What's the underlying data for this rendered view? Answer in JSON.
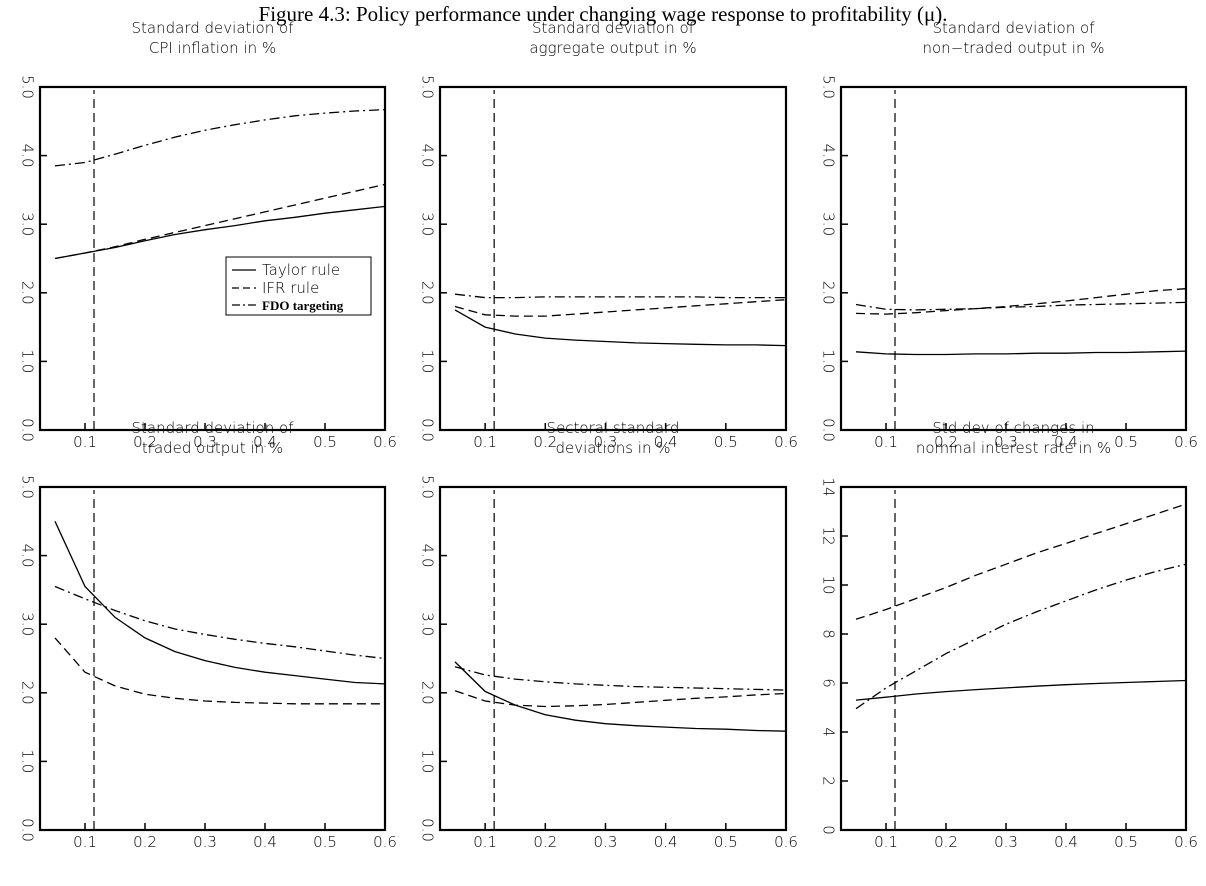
{
  "caption": "Figure 4.3: Policy performance under changing wage response to profitability (μ).",
  "chart_data": [
    {
      "type": "line",
      "title": [
        "Standard deviation of",
        "CPI inflation in %"
      ],
      "xlim": [
        0.025,
        0.6
      ],
      "ylim": [
        0,
        5
      ],
      "xticks": [
        "0.1",
        "0.2",
        "0.3",
        "0.4",
        "0.5",
        "0.6"
      ],
      "yticks": [
        "0.0",
        "1.0",
        "2.0",
        "3.0",
        "4.0",
        "5.0"
      ],
      "reference_x": 0.115,
      "legend": "center-right",
      "x": [
        0.05,
        0.1,
        0.15,
        0.2,
        0.25,
        0.3,
        0.35,
        0.4,
        0.45,
        0.5,
        0.55,
        0.6
      ],
      "series": [
        {
          "name": "Taylor rule",
          "dash": "solid",
          "values": [
            2.5,
            2.58,
            2.66,
            2.76,
            2.85,
            2.92,
            2.98,
            3.05,
            3.1,
            3.16,
            3.21,
            3.26
          ]
        },
        {
          "name": "IFR rule",
          "dash": "dashed",
          "values": [
            2.5,
            2.58,
            2.67,
            2.78,
            2.88,
            2.98,
            3.08,
            3.18,
            3.28,
            3.38,
            3.48,
            3.58
          ]
        },
        {
          "name": "FDO targeting",
          "dash": "dashdot",
          "values": [
            3.85,
            3.9,
            4.02,
            4.15,
            4.27,
            4.37,
            4.45,
            4.52,
            4.58,
            4.62,
            4.65,
            4.67
          ]
        }
      ]
    },
    {
      "type": "line",
      "title": [
        "Standard deviation of",
        "aggregate output in %"
      ],
      "xlim": [
        0.025,
        0.6
      ],
      "ylim": [
        0,
        5
      ],
      "xticks": [
        "0.1",
        "0.2",
        "0.3",
        "0.4",
        "0.5",
        "0.6"
      ],
      "yticks": [
        "0.0",
        "1.0",
        "2.0",
        "3.0",
        "4.0",
        "5.0"
      ],
      "reference_x": 0.115,
      "x": [
        0.05,
        0.1,
        0.15,
        0.2,
        0.25,
        0.3,
        0.35,
        0.4,
        0.45,
        0.5,
        0.55,
        0.6
      ],
      "series": [
        {
          "dash": "solid",
          "values": [
            1.75,
            1.5,
            1.4,
            1.34,
            1.31,
            1.29,
            1.27,
            1.26,
            1.25,
            1.24,
            1.24,
            1.23
          ]
        },
        {
          "dash": "dashed",
          "values": [
            1.8,
            1.68,
            1.66,
            1.66,
            1.69,
            1.72,
            1.75,
            1.78,
            1.81,
            1.84,
            1.87,
            1.9
          ]
        },
        {
          "dash": "dashdot",
          "values": [
            1.98,
            1.93,
            1.93,
            1.94,
            1.94,
            1.94,
            1.94,
            1.94,
            1.94,
            1.93,
            1.93,
            1.93
          ]
        }
      ]
    },
    {
      "type": "line",
      "title": [
        "Standard deviation of",
        "non−traded output in %"
      ],
      "xlim": [
        0.025,
        0.6
      ],
      "ylim": [
        0,
        5
      ],
      "xticks": [
        "0.1",
        "0.2",
        "0.3",
        "0.4",
        "0.5",
        "0.6"
      ],
      "yticks": [
        "0.0",
        "1.0",
        "2.0",
        "3.0",
        "4.0",
        "5.0"
      ],
      "reference_x": 0.115,
      "x": [
        0.05,
        0.1,
        0.15,
        0.2,
        0.25,
        0.3,
        0.35,
        0.4,
        0.45,
        0.5,
        0.55,
        0.6
      ],
      "series": [
        {
          "dash": "solid",
          "values": [
            1.14,
            1.11,
            1.1,
            1.1,
            1.11,
            1.11,
            1.12,
            1.12,
            1.13,
            1.13,
            1.14,
            1.15
          ]
        },
        {
          "dash": "dashed",
          "values": [
            1.7,
            1.69,
            1.71,
            1.74,
            1.77,
            1.8,
            1.84,
            1.88,
            1.93,
            1.98,
            2.03,
            2.06
          ]
        },
        {
          "dash": "dashdot",
          "values": [
            1.83,
            1.76,
            1.75,
            1.76,
            1.77,
            1.79,
            1.8,
            1.82,
            1.83,
            1.84,
            1.85,
            1.86
          ]
        }
      ]
    },
    {
      "type": "line",
      "title": [
        "Standard deviation of",
        "traded output in %"
      ],
      "xlim": [
        0.025,
        0.6
      ],
      "ylim": [
        0,
        5
      ],
      "xticks": [
        "0.1",
        "0.2",
        "0.3",
        "0.4",
        "0.5",
        "0.6"
      ],
      "yticks": [
        "0.0",
        "1.0",
        "2.0",
        "3.0",
        "4.0",
        "5.0"
      ],
      "reference_x": 0.115,
      "x": [
        0.05,
        0.1,
        0.15,
        0.2,
        0.25,
        0.3,
        0.35,
        0.4,
        0.45,
        0.5,
        0.55,
        0.6
      ],
      "series": [
        {
          "dash": "solid",
          "values": [
            4.5,
            3.55,
            3.1,
            2.8,
            2.6,
            2.47,
            2.37,
            2.3,
            2.25,
            2.2,
            2.15,
            2.13
          ]
        },
        {
          "dash": "dashed",
          "values": [
            2.8,
            2.3,
            2.1,
            1.98,
            1.92,
            1.88,
            1.86,
            1.85,
            1.84,
            1.84,
            1.84,
            1.84
          ]
        },
        {
          "dash": "dashdot",
          "values": [
            3.55,
            3.37,
            3.2,
            3.05,
            2.93,
            2.85,
            2.78,
            2.72,
            2.67,
            2.61,
            2.55,
            2.5
          ]
        }
      ]
    },
    {
      "type": "line",
      "title": [
        "Sectoral standard",
        "deviations in %"
      ],
      "xlim": [
        0.025,
        0.6
      ],
      "ylim": [
        0,
        5
      ],
      "xticks": [
        "0.1",
        "0.2",
        "0.3",
        "0.4",
        "0.5",
        "0.6"
      ],
      "yticks": [
        "0.0",
        "1.0",
        "2.0",
        "3.0",
        "4.0",
        "5.0"
      ],
      "reference_x": 0.115,
      "x": [
        0.05,
        0.1,
        0.15,
        0.2,
        0.25,
        0.3,
        0.35,
        0.4,
        0.45,
        0.5,
        0.55,
        0.6
      ],
      "series": [
        {
          "dash": "solid",
          "values": [
            2.45,
            2.02,
            1.82,
            1.68,
            1.6,
            1.55,
            1.52,
            1.5,
            1.48,
            1.47,
            1.45,
            1.44
          ]
        },
        {
          "dash": "dashed",
          "values": [
            2.03,
            1.88,
            1.82,
            1.8,
            1.81,
            1.83,
            1.86,
            1.89,
            1.92,
            1.94,
            1.97,
            1.99
          ]
        },
        {
          "dash": "dashdot",
          "values": [
            2.38,
            2.26,
            2.2,
            2.16,
            2.13,
            2.11,
            2.09,
            2.08,
            2.07,
            2.06,
            2.05,
            2.04
          ]
        }
      ]
    },
    {
      "type": "line",
      "title": [
        "Std dev of changes in",
        "nominal interest rate in %"
      ],
      "xlim": [
        0.025,
        0.6
      ],
      "ylim": [
        0,
        14
      ],
      "xticks": [
        "0.1",
        "0.2",
        "0.3",
        "0.4",
        "0.5",
        "0.6"
      ],
      "yticks": [
        "0",
        "2",
        "4",
        "6",
        "8",
        "10",
        "12",
        "14"
      ],
      "reference_x": 0.115,
      "x": [
        0.05,
        0.1,
        0.15,
        0.2,
        0.25,
        0.3,
        0.35,
        0.4,
        0.45,
        0.5,
        0.55,
        0.6
      ],
      "series": [
        {
          "dash": "solid",
          "values": [
            5.3,
            5.42,
            5.55,
            5.65,
            5.73,
            5.8,
            5.87,
            5.93,
            5.98,
            6.02,
            6.06,
            6.1
          ]
        },
        {
          "dash": "dashed",
          "values": [
            8.6,
            9.0,
            9.45,
            9.9,
            10.4,
            10.85,
            11.3,
            11.7,
            12.1,
            12.5,
            12.9,
            13.3
          ]
        },
        {
          "dash": "dashdot",
          "values": [
            4.95,
            5.8,
            6.5,
            7.2,
            7.8,
            8.4,
            8.9,
            9.35,
            9.8,
            10.2,
            10.55,
            10.85
          ]
        }
      ]
    }
  ]
}
